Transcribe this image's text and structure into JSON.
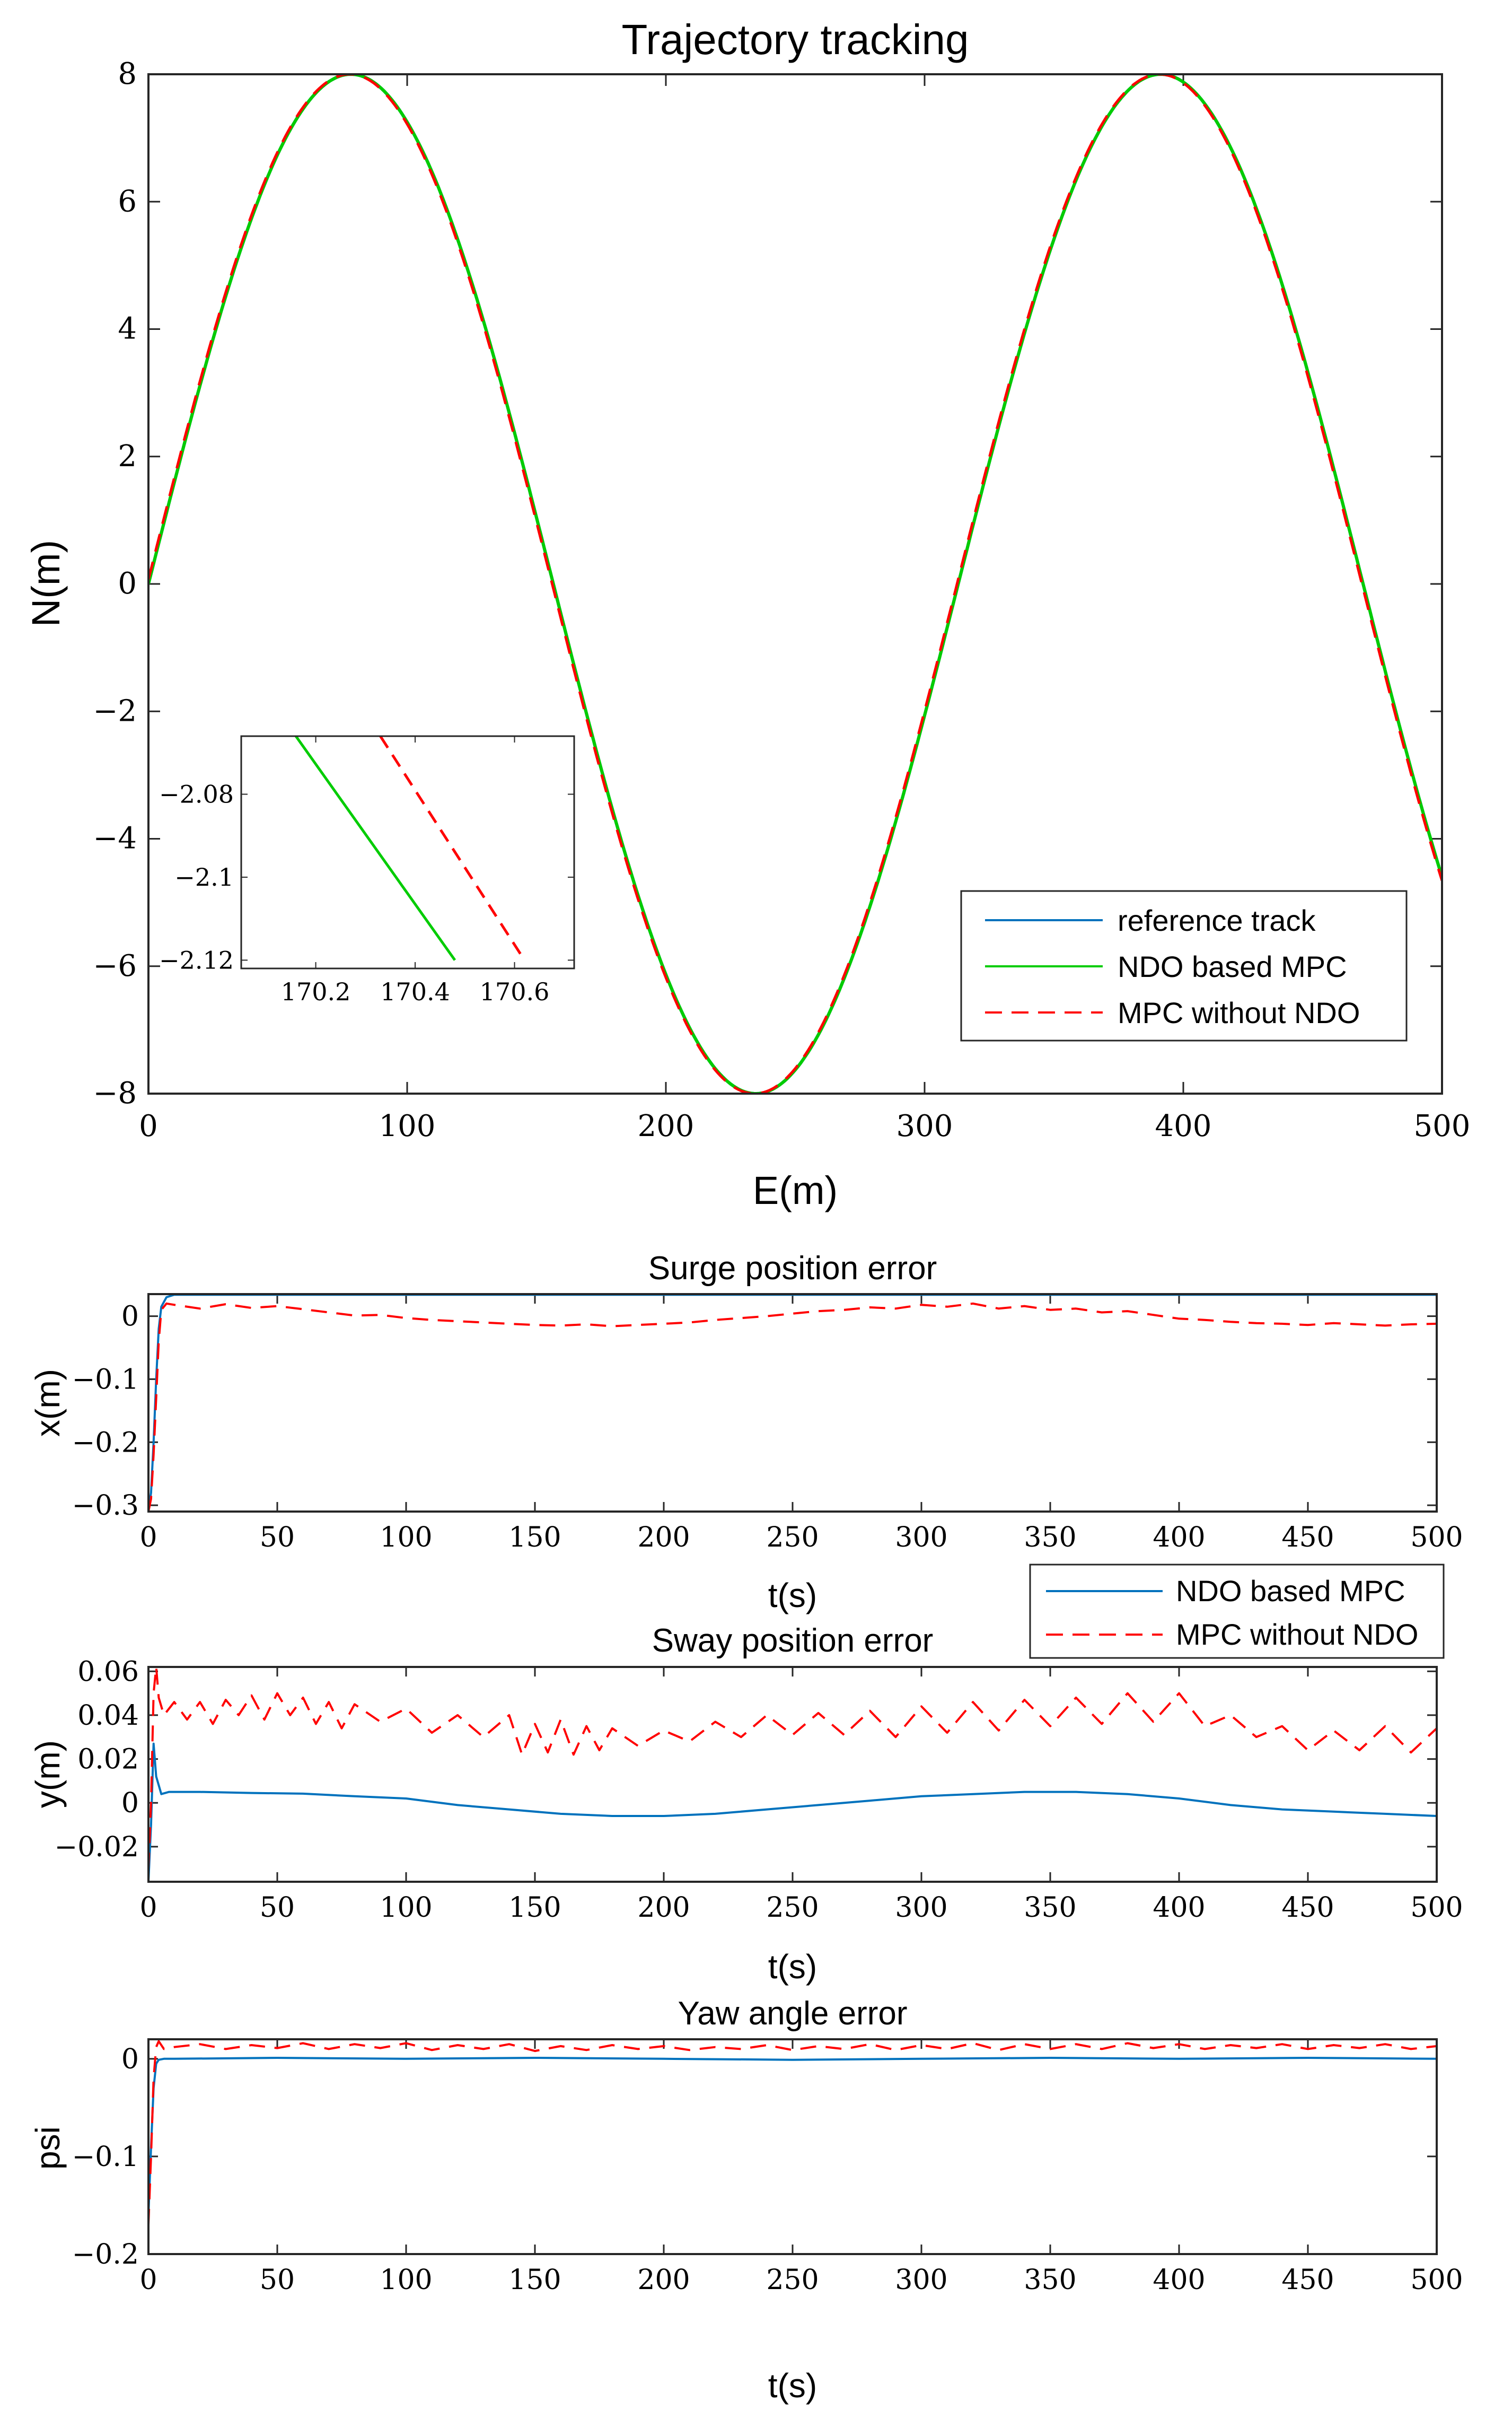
{
  "colors": {
    "reference": "#0072BD",
    "ndo_mpc": "#00CC00",
    "mpc_no_ndo": "#FF0000",
    "axes": "#262626"
  },
  "chart_data": [
    {
      "id": "tracking",
      "type": "line",
      "title": "Trajectory tracking",
      "xlabel": "E(m)",
      "ylabel": "N(m)",
      "xlim": [
        0,
        500
      ],
      "ylim": [
        -8,
        8
      ],
      "xticks": [
        0,
        100,
        200,
        300,
        400,
        500
      ],
      "yticks": [
        -8,
        -6,
        -4,
        -2,
        0,
        2,
        4,
        6,
        8
      ],
      "ytick_labels": [
        "−8",
        "−6",
        "−4",
        "−2",
        "0",
        "2",
        "4",
        "6",
        "8"
      ],
      "curve": "N = 8*sin(2*pi*E/313)",
      "x": [
        0,
        10,
        20,
        30,
        40,
        50,
        60,
        70,
        78,
        90,
        100,
        110,
        120,
        130,
        140,
        150,
        156,
        170,
        180,
        190,
        200,
        210,
        220,
        234,
        240,
        250,
        260,
        270,
        280,
        290,
        300,
        313,
        320,
        330,
        340,
        350,
        360,
        370,
        380,
        391,
        400,
        410,
        420,
        430,
        440,
        450,
        460,
        470,
        480,
        490,
        500
      ],
      "series": [
        {
          "name": "reference track",
          "style": "solid",
          "color": "#0072BD",
          "y": [
            0,
            1.58,
            3.1,
            4.49,
            5.69,
            6.64,
            7.33,
            7.81,
            8.0,
            7.87,
            7.44,
            6.7,
            5.64,
            4.36,
            2.9,
            1.3,
            0.39,
            -2.02,
            -3.52,
            -4.82,
            -5.97,
            -6.88,
            -7.55,
            -8.0,
            -7.95,
            -7.62,
            -7.02,
            -6.17,
            -5.06,
            -3.77,
            -2.37,
            0,
            1.24,
            2.8,
            4.24,
            5.48,
            6.49,
            7.26,
            7.79,
            8.0,
            7.9,
            7.44,
            6.68,
            5.63,
            4.36,
            2.9,
            1.3,
            -0.33,
            -1.93,
            -3.43,
            -4.32
          ]
        },
        {
          "name": "NDO based MPC",
          "style": "solid",
          "color": "#00CC00",
          "y": [
            0,
            1.58,
            3.1,
            4.49,
            5.69,
            6.64,
            7.33,
            7.81,
            8.0,
            7.87,
            7.44,
            6.7,
            5.64,
            4.36,
            2.9,
            1.3,
            0.39,
            -2.02,
            -3.52,
            -4.82,
            -5.97,
            -6.88,
            -7.55,
            -8.0,
            -7.95,
            -7.62,
            -7.02,
            -6.17,
            -5.06,
            -3.77,
            -2.37,
            0,
            1.24,
            2.8,
            4.24,
            5.48,
            6.49,
            7.26,
            7.79,
            8.0,
            7.9,
            7.44,
            6.68,
            5.63,
            4.36,
            2.9,
            1.3,
            -0.33,
            -1.93,
            -3.43,
            -4.32
          ]
        },
        {
          "name": "MPC without NDO",
          "style": "dashed",
          "color": "#FF0000",
          "y": [
            0,
            1.6,
            3.12,
            4.51,
            5.71,
            6.66,
            7.35,
            7.82,
            8.0,
            7.86,
            7.42,
            6.68,
            5.62,
            4.33,
            2.87,
            1.27,
            0.36,
            -2.05,
            -3.55,
            -4.85,
            -5.99,
            -6.9,
            -7.56,
            -8.0,
            -7.94,
            -7.6,
            -7.0,
            -6.14,
            -5.03,
            -3.74,
            -2.34,
            0.03,
            1.27,
            2.83,
            4.27,
            5.51,
            6.51,
            7.28,
            7.8,
            8.0,
            7.89,
            7.42,
            6.66,
            5.6,
            4.33,
            2.87,
            1.27,
            -0.36,
            -1.96,
            -3.46,
            -4.35
          ]
        }
      ],
      "legend": {
        "position": "bottom-right",
        "entries": [
          "reference track",
          "NDO based MPC",
          "MPC without NDO"
        ]
      },
      "inset": {
        "position": "left-middle",
        "xlim": [
          170.05,
          170.72
        ],
        "ylim": [
          -2.122,
          -2.066
        ],
        "xticks": [
          170.2,
          170.4,
          170.6
        ],
        "xtick_labels": [
          "170.2",
          "170.4",
          "170.6"
        ],
        "yticks": [
          -2.08,
          -2.1,
          -2.12
        ],
        "ytick_labels": [
          "−2.08",
          "−2.1",
          "−2.12"
        ],
        "lines": [
          {
            "name": "NDO based MPC",
            "color": "#00CC00",
            "style": "solid",
            "x": [
              170.16,
              170.48
            ],
            "y": [
              -2.066,
              -2.12
            ]
          },
          {
            "name": "MPC without NDO",
            "color": "#FF0000",
            "style": "dashed",
            "x": [
              170.33,
              170.62
            ],
            "y": [
              -2.066,
              -2.12
            ]
          }
        ]
      }
    },
    {
      "id": "surge",
      "type": "line",
      "title": "Surge position error",
      "xlabel": "t(s)",
      "ylabel": "x(m)",
      "xlim": [
        0,
        500
      ],
      "ylim": [
        -0.31,
        0.035
      ],
      "xticks": [
        0,
        50,
        100,
        150,
        200,
        250,
        300,
        350,
        400,
        450,
        500
      ],
      "yticks": [
        -0.3,
        -0.2,
        -0.1,
        0
      ],
      "ytick_labels": [
        "−0.3",
        "−0.2",
        "−0.1",
        "0"
      ],
      "series": [
        {
          "name": "NDO based MPC",
          "style": "solid",
          "color": "#0072BD",
          "x": [
            0,
            1,
            2,
            3,
            4,
            5,
            7,
            10,
            500
          ],
          "y": [
            -0.31,
            -0.28,
            -0.2,
            -0.1,
            -0.02,
            0.015,
            0.03,
            0.034,
            0.034
          ]
        },
        {
          "name": "MPC without NDO",
          "style": "dashed",
          "color": "#FF0000",
          "x": [
            0,
            1,
            2,
            3,
            4,
            5,
            7,
            10,
            20,
            30,
            40,
            50,
            60,
            70,
            80,
            90,
            100,
            110,
            120,
            130,
            140,
            150,
            160,
            170,
            180,
            190,
            200,
            210,
            220,
            230,
            240,
            250,
            260,
            270,
            280,
            290,
            300,
            310,
            320,
            330,
            340,
            350,
            360,
            370,
            380,
            390,
            400,
            410,
            420,
            430,
            440,
            450,
            460,
            470,
            480,
            490,
            500
          ],
          "y": [
            -0.31,
            -0.29,
            -0.22,
            -0.13,
            -0.04,
            0.01,
            0.02,
            0.018,
            0.012,
            0.019,
            0.013,
            0.016,
            0.011,
            0.006,
            0.001,
            0.002,
            -0.003,
            -0.006,
            -0.008,
            -0.01,
            -0.012,
            -0.014,
            -0.015,
            -0.013,
            -0.016,
            -0.014,
            -0.012,
            -0.01,
            -0.006,
            -0.003,
            0.0,
            0.004,
            0.008,
            0.01,
            0.014,
            0.012,
            0.018,
            0.015,
            0.02,
            0.012,
            0.016,
            0.01,
            0.012,
            0.006,
            0.008,
            0.002,
            -0.004,
            -0.006,
            -0.009,
            -0.011,
            -0.012,
            -0.014,
            -0.011,
            -0.013,
            -0.015,
            -0.013,
            -0.012
          ]
        }
      ],
      "legend": {
        "position": "below-right",
        "entries": [
          "NDO based MPC",
          "MPC without NDO"
        ]
      }
    },
    {
      "id": "sway",
      "type": "line",
      "title": "Sway position error",
      "xlabel": "t(s)",
      "ylabel": "y(m)",
      "xlim": [
        0,
        500
      ],
      "ylim": [
        -0.036,
        0.062
      ],
      "xticks": [
        0,
        50,
        100,
        150,
        200,
        250,
        300,
        350,
        400,
        450,
        500
      ],
      "yticks": [
        -0.02,
        0,
        0.02,
        0.04,
        0.06
      ],
      "ytick_labels": [
        "−0.02",
        "0",
        "0.02",
        "0.04",
        "0.06"
      ],
      "series": [
        {
          "name": "NDO based MPC",
          "style": "solid",
          "color": "#0072BD",
          "x": [
            0,
            1,
            2,
            3,
            5,
            8,
            20,
            40,
            60,
            80,
            100,
            120,
            140,
            160,
            180,
            200,
            220,
            240,
            260,
            280,
            300,
            320,
            340,
            360,
            380,
            400,
            420,
            440,
            460,
            480,
            500
          ],
          "y": [
            -0.036,
            -0.01,
            0.027,
            0.012,
            0.004,
            0.005,
            0.005,
            0.0045,
            0.0042,
            0.003,
            0.002,
            -0.001,
            -0.003,
            -0.005,
            -0.006,
            -0.006,
            -0.005,
            -0.003,
            -0.001,
            0.001,
            0.003,
            0.004,
            0.005,
            0.005,
            0.004,
            0.002,
            -0.001,
            -0.003,
            -0.004,
            -0.005,
            -0.006
          ]
        },
        {
          "name": "MPC without NDO",
          "style": "dashed",
          "color": "#FF0000",
          "x": [
            0,
            1,
            2,
            3,
            4,
            6,
            10,
            15,
            20,
            25,
            30,
            35,
            40,
            45,
            50,
            55,
            60,
            65,
            70,
            75,
            80,
            90,
            100,
            110,
            120,
            130,
            140,
            145,
            150,
            155,
            160,
            165,
            170,
            175,
            180,
            190,
            200,
            210,
            220,
            230,
            240,
            250,
            260,
            270,
            280,
            290,
            300,
            310,
            320,
            330,
            340,
            350,
            360,
            370,
            380,
            390,
            400,
            410,
            420,
            430,
            440,
            450,
            460,
            470,
            480,
            490,
            500
          ],
          "y": [
            -0.03,
            0.0,
            0.05,
            0.062,
            0.048,
            0.04,
            0.046,
            0.038,
            0.046,
            0.036,
            0.047,
            0.04,
            0.049,
            0.038,
            0.05,
            0.04,
            0.048,
            0.036,
            0.046,
            0.034,
            0.045,
            0.037,
            0.043,
            0.032,
            0.04,
            0.03,
            0.04,
            0.022,
            0.036,
            0.023,
            0.038,
            0.022,
            0.035,
            0.024,
            0.034,
            0.026,
            0.033,
            0.028,
            0.037,
            0.03,
            0.04,
            0.031,
            0.041,
            0.031,
            0.042,
            0.03,
            0.044,
            0.032,
            0.046,
            0.033,
            0.047,
            0.035,
            0.048,
            0.036,
            0.05,
            0.037,
            0.05,
            0.035,
            0.04,
            0.03,
            0.035,
            0.024,
            0.033,
            0.024,
            0.035,
            0.023,
            0.034
          ]
        }
      ]
    },
    {
      "id": "yaw",
      "type": "line",
      "title": "Yaw angle error",
      "xlabel": "t(s)",
      "ylabel": "psi",
      "xlim": [
        0,
        500
      ],
      "ylim": [
        -0.2,
        0.02
      ],
      "xticks": [
        0,
        50,
        100,
        150,
        200,
        250,
        300,
        350,
        400,
        450,
        500
      ],
      "yticks": [
        -0.2,
        -0.1,
        0
      ],
      "ytick_labels": [
        "−0.2",
        "−0.1",
        "0"
      ],
      "series": [
        {
          "name": "NDO based MPC",
          "style": "solid",
          "color": "#0072BD",
          "x": [
            0,
            1,
            2,
            3,
            4,
            6,
            10,
            50,
            100,
            150,
            200,
            250,
            300,
            350,
            400,
            450,
            500
          ],
          "y": [
            -0.16,
            -0.09,
            -0.03,
            -0.005,
            -0.001,
            0.0,
            0.0,
            0.001,
            0.0,
            0.001,
            0.0,
            -0.001,
            0.0,
            0.001,
            0.0,
            0.001,
            0.0
          ]
        },
        {
          "name": "MPC without NDO",
          "style": "dashed",
          "color": "#FF0000",
          "x": [
            0,
            1,
            2,
            3,
            4,
            6,
            10,
            20,
            30,
            40,
            50,
            60,
            70,
            80,
            90,
            100,
            110,
            120,
            130,
            140,
            150,
            160,
            170,
            180,
            190,
            200,
            210,
            220,
            230,
            240,
            250,
            260,
            270,
            280,
            290,
            300,
            310,
            320,
            330,
            340,
            350,
            360,
            370,
            380,
            390,
            400,
            410,
            420,
            430,
            440,
            450,
            460,
            470,
            480,
            490,
            500
          ],
          "y": [
            -0.17,
            -0.1,
            -0.02,
            0.012,
            0.018,
            0.01,
            0.012,
            0.015,
            0.01,
            0.014,
            0.011,
            0.016,
            0.01,
            0.015,
            0.011,
            0.016,
            0.009,
            0.014,
            0.01,
            0.015,
            0.008,
            0.013,
            0.009,
            0.014,
            0.01,
            0.013,
            0.009,
            0.012,
            0.01,
            0.014,
            0.009,
            0.013,
            0.01,
            0.015,
            0.009,
            0.014,
            0.01,
            0.016,
            0.009,
            0.015,
            0.01,
            0.015,
            0.01,
            0.016,
            0.011,
            0.015,
            0.01,
            0.014,
            0.011,
            0.015,
            0.01,
            0.014,
            0.011,
            0.015,
            0.01,
            0.013
          ]
        }
      ]
    }
  ]
}
